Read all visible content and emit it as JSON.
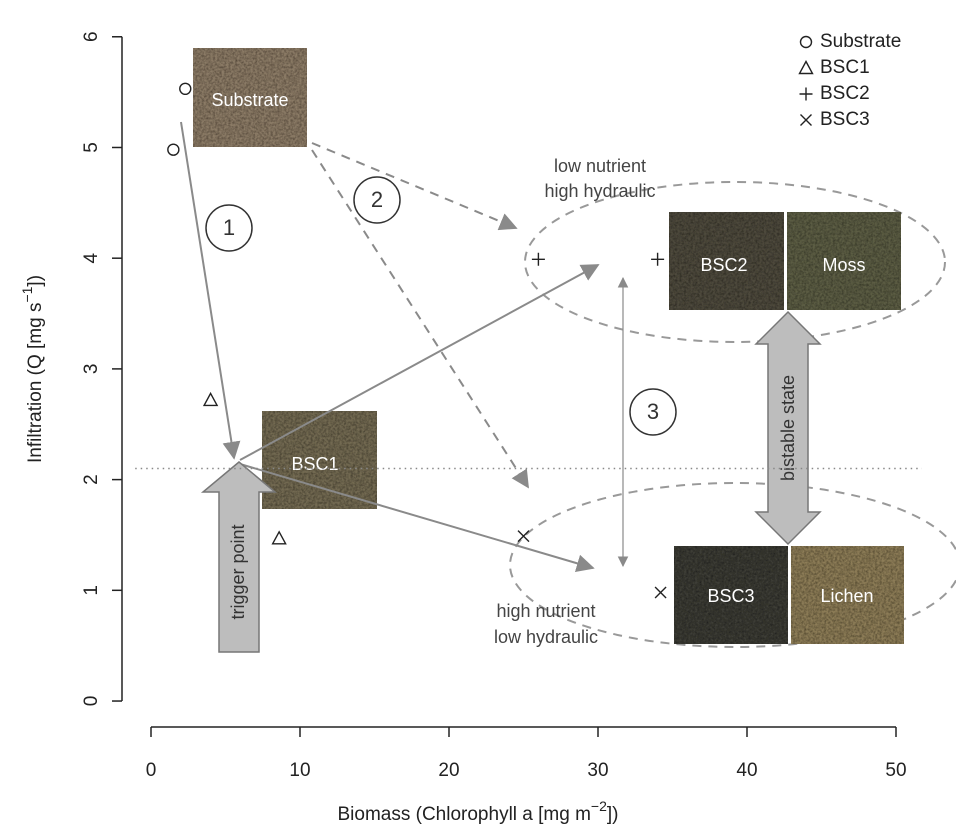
{
  "chart_data": {
    "type": "scatter",
    "x_label": [
      "Biomass (Chlorophyll a [mg m",
      "−2",
      "])"
    ],
    "y_label": [
      "Infiltration (Q [mg s",
      "−1",
      "])"
    ],
    "xlim": [
      -2,
      52
    ],
    "ylim": [
      -0.24,
      6.24
    ],
    "xticks": [
      0,
      10,
      20,
      30,
      40,
      50
    ],
    "yticks": [
      0,
      1,
      2,
      3,
      4,
      5,
      6
    ],
    "hline": 2.1,
    "legend": "upper right",
    "series": [
      {
        "name": "Substrate",
        "marker": "circle",
        "color": "#222222",
        "x": [
          2.3,
          1.5
        ],
        "values": [
          5.53,
          4.98
        ]
      },
      {
        "name": "BSC1",
        "marker": "triangle",
        "color": "#222222",
        "x": [
          4.0,
          8.6
        ],
        "values": [
          2.72,
          1.47
        ]
      },
      {
        "name": "BSC2",
        "marker": "plus",
        "color": "#222222",
        "x": [
          26.0,
          34.0
        ],
        "values": [
          3.99,
          3.99
        ]
      },
      {
        "name": "BSC3",
        "marker": "cross",
        "color": "#222222",
        "x": [
          25.0,
          34.2
        ],
        "values": [
          1.49,
          0.98
        ]
      }
    ],
    "annotations": {
      "images": [
        "Substrate",
        "BSC1",
        "BSC2",
        "Moss",
        "BSC3",
        "Lichen"
      ],
      "steps": [
        "1",
        "2",
        "3"
      ],
      "notes": [
        "low nutrient",
        "high hydraulic",
        "high nutrient",
        "low hydraulic"
      ],
      "arrows": [
        "trigger point",
        "bistable state"
      ]
    }
  }
}
